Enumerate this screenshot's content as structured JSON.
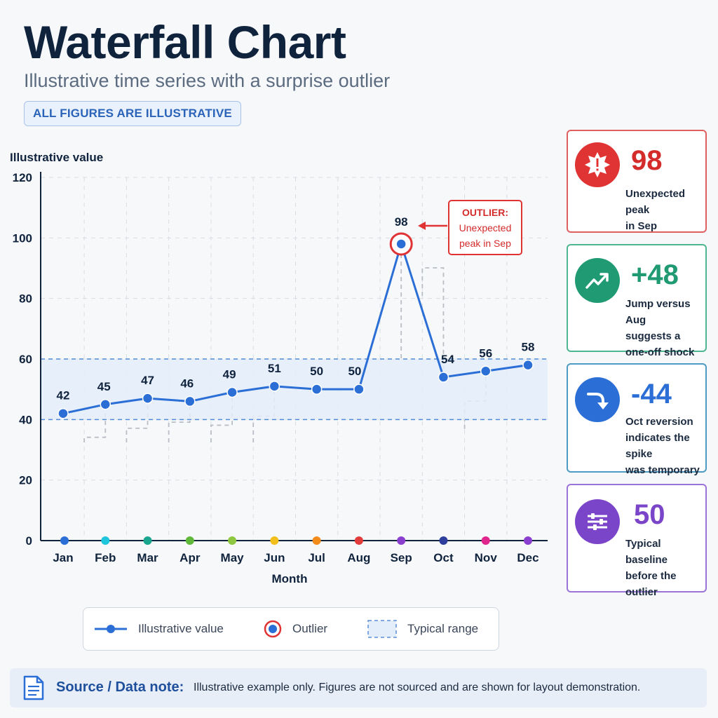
{
  "header": {
    "title": "Waterfall Chart",
    "subtitle": "Illustrative time series with a surprise outlier",
    "badge": "ALL FIGURES ARE ILLUSTRATIVE"
  },
  "chart_data": {
    "type": "line",
    "ylabel": "Illustrative value",
    "xlabel": "Month",
    "ylim": [
      0,
      120
    ],
    "yticks": [
      0,
      20,
      40,
      60,
      80,
      100,
      120
    ],
    "categories": [
      "Jan",
      "Feb",
      "Mar",
      "Apr",
      "May",
      "Jun",
      "Jul",
      "Aug",
      "Sep",
      "Oct",
      "Nov",
      "Dec"
    ],
    "series": [
      {
        "name": "Illustrative value",
        "values": [
          42,
          45,
          47,
          46,
          49,
          51,
          50,
          50,
          98,
          54,
          56,
          58
        ],
        "color": "#2b6fd6"
      }
    ],
    "typical_range": [
      40,
      60
    ],
    "outlier": {
      "category": "Sep",
      "value": 98,
      "label_lines": [
        "OUTLIER:",
        "Unexpected",
        "peak in Sep"
      ]
    },
    "category_colors": [
      "#2b6fd6",
      "#1fc4dd",
      "#1aa58e",
      "#5fb83a",
      "#8dc63f",
      "#f2bf1b",
      "#f28b1a",
      "#e23b3b",
      "#8b3fcf",
      "#2d3e9c",
      "#e0258c",
      "#8b3fcf"
    ],
    "grid": true,
    "legend_position": "bottom"
  },
  "cards": [
    {
      "value": "98",
      "lines": [
        "Unexpected peak",
        "in Sep"
      ],
      "color": "#e03434",
      "icon": "alert-burst-icon"
    },
    {
      "value": "+48",
      "lines": [
        "Jump versus Aug",
        "suggests a",
        "one-off shock"
      ],
      "color": "#1f9a72",
      "icon": "trend-up-icon"
    },
    {
      "value": "-44",
      "lines": [
        "Oct reversion",
        "indicates the spike",
        "was temporary"
      ],
      "color": "#2b6fd6",
      "icon": "return-arrow-icon"
    },
    {
      "value": "50",
      "lines": [
        "Typical baseline",
        "before the outlier"
      ],
      "color": "#7a45c8",
      "icon": "sliders-icon"
    }
  ],
  "legend": {
    "line_label": "Illustrative value",
    "outlier_label": "Outlier",
    "range_label": "Typical range"
  },
  "footer": {
    "label": "Source / Data note:",
    "text": "Illustrative example only. Figures are not sourced and are shown for layout demonstration."
  }
}
